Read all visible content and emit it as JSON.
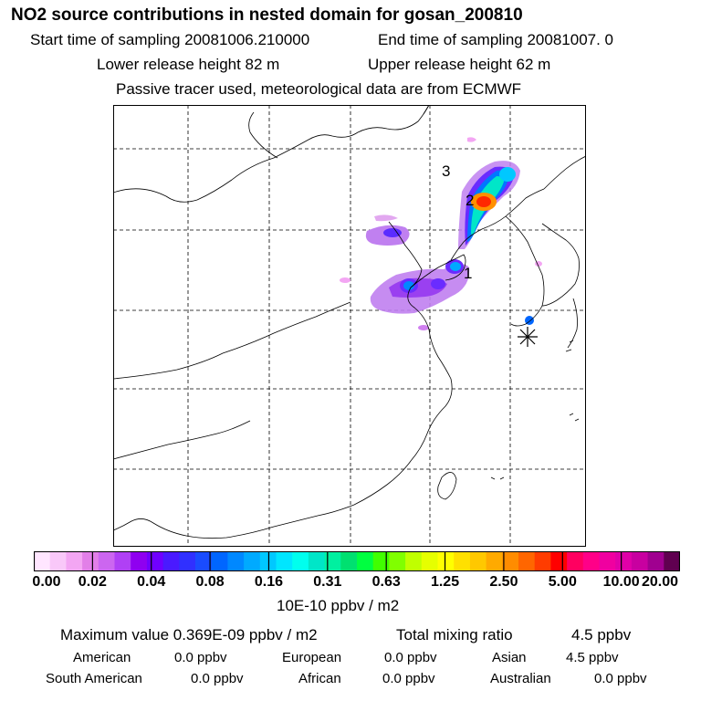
{
  "header": {
    "title": "NO2 source contributions in nested domain for gosan_200810",
    "start_time": "Start time of sampling 20081006.210000",
    "end_time": "End time of sampling 20081007.     0",
    "lower_release": "Lower release height   82 m",
    "upper_release": "Upper release height   62 m",
    "tracer_note": "Passive tracer used, meteorological data are from ECMWF"
  },
  "map": {
    "labels": [
      "1",
      "2",
      "3"
    ],
    "station_marker": "station-star"
  },
  "colorbar": {
    "colors": [
      "#ffe6ff",
      "#f9c8f9",
      "#f3a6f3",
      "#e27fe8",
      "#cc66f0",
      "#b040f5",
      "#8f00f0",
      "#7000ff",
      "#4a1aff",
      "#3030ff",
      "#1a4cff",
      "#0066ff",
      "#0088ff",
      "#00aaff",
      "#00c8ff",
      "#00e6ff",
      "#00ffee",
      "#00e6c8",
      "#00f0a0",
      "#00e070",
      "#00ff40",
      "#40ff00",
      "#80ff00",
      "#c0ff00",
      "#e6ff00",
      "#ffff00",
      "#ffe000",
      "#ffc800",
      "#ffaa00",
      "#ff8c00",
      "#ff6600",
      "#ff3c00",
      "#ff0000",
      "#ff0060",
      "#ff0088",
      "#f000a0",
      "#e000a8",
      "#c800a0",
      "#a00090",
      "#600050"
    ],
    "ticks": [
      "0.00",
      "0.02",
      "0.04",
      "0.08",
      "0.16",
      "0.31",
      "0.63",
      "1.25",
      "2.50",
      "5.00",
      "10.00",
      "20.00"
    ],
    "units": "10E-10 ppbv / m2"
  },
  "summary": {
    "max_value": "Maximum value  0.369E-09 ppbv / m2",
    "total_label": "Total mixing ratio",
    "total_value": "4.5 ppbv",
    "regions_row1": [
      {
        "name": "American",
        "value": "0.0 ppbv"
      },
      {
        "name": "European",
        "value": "0.0 ppbv"
      },
      {
        "name": "Asian",
        "value": "4.5 ppbv"
      }
    ],
    "regions_row2": [
      {
        "name": "South American",
        "value": "0.0 ppbv"
      },
      {
        "name": "African",
        "value": "0.0 ppbv"
      },
      {
        "name": "Australian",
        "value": "0.0 ppbv"
      }
    ]
  }
}
